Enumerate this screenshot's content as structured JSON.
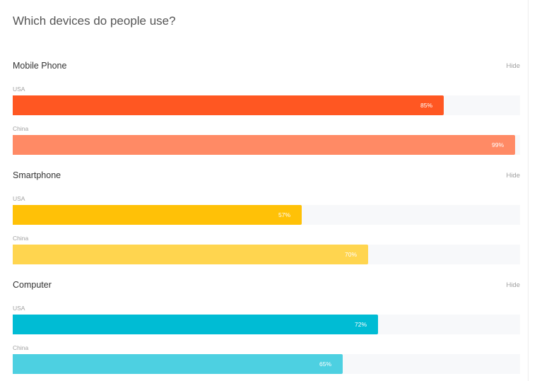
{
  "title": "Which devices do people use?",
  "hide_label": "Hide",
  "chart_data": {
    "type": "bar",
    "title": "Which devices do people use?",
    "orientation": "horizontal",
    "xlim": [
      0,
      100
    ],
    "unit": "%",
    "groups": [
      {
        "name": "Mobile Phone",
        "bars": [
          {
            "label": "USA",
            "value": 85,
            "display": "85%",
            "color": "#ff5722"
          },
          {
            "label": "China",
            "value": 99,
            "display": "99%",
            "color": "#ff8a65"
          }
        ]
      },
      {
        "name": "Smartphone",
        "bars": [
          {
            "label": "USA",
            "value": 57,
            "display": "57%",
            "color": "#ffc107"
          },
          {
            "label": "China",
            "value": 70,
            "display": "70%",
            "color": "#ffd54f"
          }
        ]
      },
      {
        "name": "Computer",
        "bars": [
          {
            "label": "USA",
            "value": 72,
            "display": "72%",
            "color": "#00bcd4"
          },
          {
            "label": "China",
            "value": 65,
            "display": "65%",
            "color": "#4dd0e1"
          }
        ]
      }
    ]
  }
}
